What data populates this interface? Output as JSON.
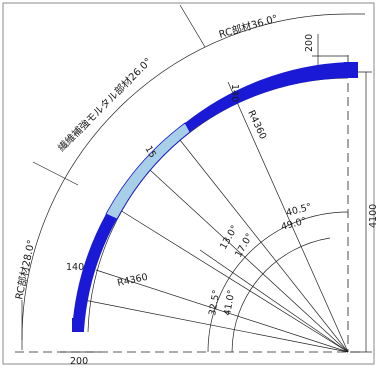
{
  "segments": {
    "rc_top": "RC部材36.0°",
    "fiber": "繊維補強モルタル部材26.0°",
    "rc_left": "RC部材28.0°"
  },
  "dimensions": {
    "top_width": "200",
    "top_thickness": "140",
    "radius_upper": "R4360",
    "splice_a": "15",
    "height": "4100",
    "angle_405": "40.5°",
    "angle_490": "49.0°",
    "angle_130": "13.0°",
    "angle_170": "17.0°",
    "left_thickness": "140",
    "radius_lower": "R4360",
    "angle_325": "32.5°",
    "angle_410": "41.0°",
    "bottom_width": "200"
  },
  "colors": {
    "rc_member": "#1a1ad6",
    "fiber_member": "#a8cfe8",
    "lines": "#222222"
  }
}
